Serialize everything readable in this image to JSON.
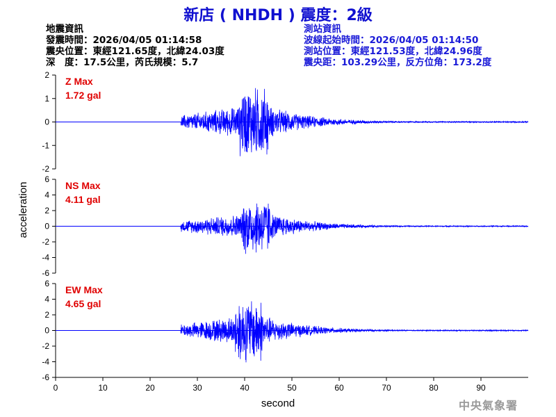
{
  "header": {
    "title": "新店 ( NHDH ) 震度：2級"
  },
  "quake_info": {
    "heading": "地震資訊",
    "origin_time": "發震時間：2026/04/05 01:14:58",
    "epicenter": "震央位置：東經121.65度，北緯24.03度",
    "depth_magnitude": "深　度：17.5公里，芮氏規模：5.7"
  },
  "station_info": {
    "heading": "測站資訊",
    "wave_start": "波線起始時間：2026/04/05 01:14:50",
    "station_location": "測站位置：東經121.53度，北緯24.96度",
    "distance_azimuth": "震央距：103.29公里，反方位角：173.2度"
  },
  "watermark": "中央氣象署",
  "colors": {
    "title": "#1010d0",
    "trace": "#0000ff",
    "max_label": "#e00000",
    "station_text": "#1a1ad8"
  },
  "chart_data": {
    "type": "line",
    "xlabel": "second",
    "ylabel": "acceleration",
    "xlim": [
      0,
      100
    ],
    "x_ticks": [
      0,
      10,
      20,
      30,
      40,
      50,
      60,
      70,
      80,
      90
    ],
    "panels": [
      {
        "component": "Z",
        "max_label": "Z Max",
        "max_value": "1.72 gal",
        "ylim": [
          -2,
          2
        ],
        "y_ticks": [
          2,
          1,
          0,
          -1,
          -2
        ],
        "onset_s": 26.5,
        "peak_s": 42,
        "max_abs": 1.72,
        "pre_amp": 0.0,
        "coda_amp": 0.03
      },
      {
        "component": "NS",
        "max_label": "NS Max",
        "max_value": "4.11 gal",
        "ylim": [
          -6,
          6
        ],
        "y_ticks": [
          6,
          4,
          2,
          0,
          -2,
          -4,
          -6
        ],
        "onset_s": 26.5,
        "peak_s": 42.5,
        "max_abs": 4.11,
        "pre_amp": 0.0,
        "coda_amp": 0.08
      },
      {
        "component": "EW",
        "max_label": "EW Max",
        "max_value": "4.65 gal",
        "ylim": [
          -6,
          6
        ],
        "y_ticks": [
          6,
          4,
          2,
          0,
          -2,
          -4,
          -6
        ],
        "onset_s": 26.5,
        "peak_s": 41,
        "max_abs": 4.65,
        "pre_amp": 0.0,
        "coda_amp": 0.08
      }
    ]
  }
}
